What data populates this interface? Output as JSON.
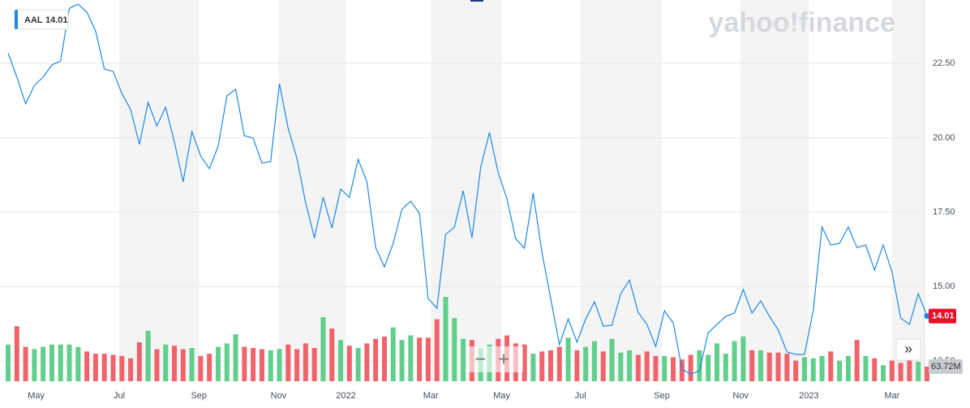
{
  "chart_data": {
    "type": "line",
    "symbol": "AAL",
    "watermark": "yahoo!finance",
    "xlim": [
      0,
      105
    ],
    "ylim": [
      11.82,
      24.63
    ],
    "xticks": [
      {
        "value": 3.2,
        "label": "May"
      },
      {
        "value": 12.7,
        "label": "Jul"
      },
      {
        "value": 21.8,
        "label": "Sep"
      },
      {
        "value": 30.9,
        "label": "Nov"
      },
      {
        "value": 38.6,
        "label": "2022"
      },
      {
        "value": 48.3,
        "label": "Mar"
      },
      {
        "value": 56.4,
        "label": "May"
      },
      {
        "value": 65.4,
        "label": "Jul"
      },
      {
        "value": 74.7,
        "label": "Sep"
      },
      {
        "value": 83.7,
        "label": "Nov"
      },
      {
        "value": 91.5,
        "label": "2023"
      },
      {
        "value": 101.0,
        "label": "Mar"
      }
    ],
    "yticks": [
      {
        "value": 12.5,
        "label": "12.50"
      },
      {
        "value": 15,
        "label": "15.00"
      },
      {
        "value": 17.5,
        "label": "17.50"
      },
      {
        "value": 20,
        "label": "20.00"
      },
      {
        "value": 22.5,
        "label": "22.50"
      }
    ],
    "grid": true,
    "series": [
      {
        "name": "AAL",
        "color": "#1e88e5",
        "values": [
          22.85,
          22.04,
          21.14,
          21.76,
          22.04,
          22.45,
          22.58,
          24.35,
          24.49,
          24.22,
          23.59,
          22.31,
          22.23,
          21.49,
          20.95,
          19.78,
          21.19,
          20.4,
          21.03,
          19.86,
          18.52,
          20.21,
          19.39,
          18.96,
          19.72,
          21.41,
          21.63,
          20.07,
          19.99,
          19.15,
          19.2,
          21.82,
          20.32,
          19.31,
          17.81,
          16.64,
          18.0,
          16.97,
          18.28,
          18.0,
          19.28,
          18.52,
          16.31,
          15.66,
          16.45,
          17.6,
          17.87,
          17.46,
          14.6,
          14.27,
          16.75,
          17.0,
          18.22,
          16.64,
          19.01,
          20.18,
          18.82,
          17.95,
          16.61,
          16.29,
          18.14,
          16.15,
          14.6,
          13.05,
          13.92,
          13.13,
          13.92,
          14.49,
          13.67,
          13.7,
          14.76,
          15.22,
          14.13,
          13.73,
          12.99,
          14.19,
          13.78,
          12.23,
          12.06,
          12.17,
          13.45,
          13.73,
          14.0,
          14.11,
          14.9,
          14.11,
          14.52,
          14.0,
          13.54,
          12.8,
          12.72,
          12.72,
          14.19,
          17.0,
          16.4,
          16.45,
          17.0,
          16.31,
          16.4,
          15.55,
          16.4,
          15.5,
          13.94,
          13.73,
          14.76,
          14.01
        ]
      }
    ],
    "volume": {
      "up_color": "#5fcf8b",
      "down_color": "#f0636a",
      "current_label": "63.72M",
      "values": [
        160,
        240,
        150,
        140,
        150,
        160,
        160,
        160,
        150,
        130,
        120,
        120,
        115,
        110,
        100,
        170,
        220,
        140,
        160,
        155,
        140,
        145,
        110,
        120,
        150,
        165,
        205,
        150,
        145,
        140,
        135,
        140,
        160,
        140,
        165,
        145,
        280,
        230,
        180,
        155,
        145,
        165,
        185,
        195,
        235,
        180,
        200,
        190,
        190,
        270,
        368,
        275,
        185,
        180,
        145,
        160,
        185,
        200,
        165,
        160,
        120,
        130,
        135,
        150,
        190,
        135,
        150,
        175,
        130,
        185,
        125,
        135,
        115,
        130,
        110,
        110,
        105,
        95,
        115,
        135,
        115,
        165,
        120,
        175,
        195,
        135,
        135,
        125,
        125,
        120,
        90,
        105,
        100,
        110,
        130,
        90,
        110,
        180,
        110,
        100,
        70,
        90,
        80,
        90,
        85,
        63.72
      ]
    }
  }
}
